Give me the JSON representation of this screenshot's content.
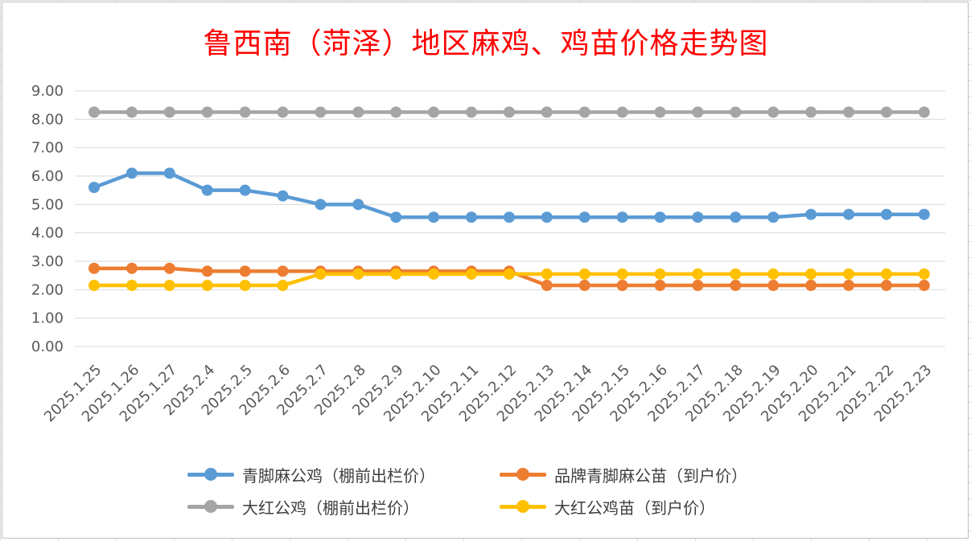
{
  "chart_data": {
    "type": "line",
    "title": "鲁西南（菏泽）地区麻鸡、鸡苗价格走势图",
    "title_color": "#ff0000",
    "categories": [
      "2025.1.25",
      "2025.1.26",
      "2025.1.27",
      "2025.2.4",
      "2025.2.5",
      "2025.2.6",
      "2025.2.7",
      "2025.2.8",
      "2025.2.9",
      "2025.2.10",
      "2025.2.11",
      "2025.2.12",
      "2025.2.13",
      "2025.2.14",
      "2025.2.15",
      "2025.2.16",
      "2025.2.17",
      "2025.2.18",
      "2025.2.19",
      "2025.2.20",
      "2025.2.21",
      "2025.2.22",
      "2025.2.23"
    ],
    "ylim": [
      0,
      9
    ],
    "ytick_step": 1,
    "yticks": [
      "0.00",
      "1.00",
      "2.00",
      "3.00",
      "4.00",
      "5.00",
      "6.00",
      "7.00",
      "8.00",
      "9.00"
    ],
    "grid": true,
    "legend_position": "bottom",
    "series": [
      {
        "name": "青脚麻公鸡（棚前出栏价）",
        "color": "#5b9bd5",
        "values": [
          5.6,
          6.1,
          6.1,
          5.5,
          5.5,
          5.3,
          5.0,
          5.0,
          4.55,
          4.55,
          4.55,
          4.55,
          4.55,
          4.55,
          4.55,
          4.55,
          4.55,
          4.55,
          4.55,
          4.65,
          4.65,
          4.65,
          4.65
        ]
      },
      {
        "name": "品牌青脚麻公苗（到户价）",
        "color": "#ed7d31",
        "values": [
          2.75,
          2.75,
          2.75,
          2.65,
          2.65,
          2.65,
          2.65,
          2.65,
          2.65,
          2.65,
          2.65,
          2.65,
          2.15,
          2.15,
          2.15,
          2.15,
          2.15,
          2.15,
          2.15,
          2.15,
          2.15,
          2.15,
          2.15
        ]
      },
      {
        "name": "大红公鸡（棚前出栏价）",
        "color": "#a5a5a5",
        "values": [
          8.25,
          8.25,
          8.25,
          8.25,
          8.25,
          8.25,
          8.25,
          8.25,
          8.25,
          8.25,
          8.25,
          8.25,
          8.25,
          8.25,
          8.25,
          8.25,
          8.25,
          8.25,
          8.25,
          8.25,
          8.25,
          8.25,
          8.25
        ]
      },
      {
        "name": "大红公鸡苗（到户价）",
        "color": "#ffc000",
        "values": [
          2.15,
          2.15,
          2.15,
          2.15,
          2.15,
          2.15,
          2.55,
          2.55,
          2.55,
          2.55,
          2.55,
          2.55,
          2.55,
          2.55,
          2.55,
          2.55,
          2.55,
          2.55,
          2.55,
          2.55,
          2.55,
          2.55,
          2.55
        ]
      }
    ],
    "draw_order": [
      2,
      0,
      1,
      3
    ]
  }
}
